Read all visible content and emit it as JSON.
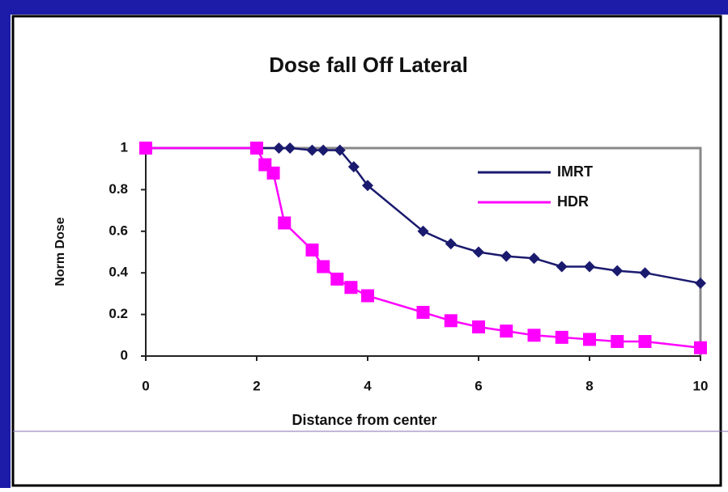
{
  "chart_data": {
    "type": "line",
    "title": "Dose fall Off Lateral",
    "x_label": "Distance from center",
    "y_label": "Norm Dose",
    "xlim": [
      0,
      10
    ],
    "xticks": [
      0,
      2,
      4,
      6,
      8,
      10
    ],
    "ylim": [
      0,
      1
    ],
    "yticks": [
      0,
      0.2,
      0.4,
      0.6,
      0.8,
      1
    ],
    "grid": false,
    "legend_position": "upper right",
    "series": [
      {
        "name": "IMRT",
        "color": "#1a1a6e",
        "marker": "diamond",
        "x": [
          0,
          2.4,
          2.6,
          3,
          3.2,
          3.5,
          3.75,
          4,
          5,
          5.5,
          6,
          6.5,
          7,
          7.5,
          8,
          8.5,
          9,
          10
        ],
        "values": [
          1,
          1,
          1,
          0.99,
          0.99,
          0.99,
          0.91,
          0.82,
          0.6,
          0.54,
          0.5,
          0.48,
          0.47,
          0.43,
          0.43,
          0.41,
          0.4,
          0.35
        ]
      },
      {
        "name": "HDR",
        "color": "#ff00ff",
        "marker": "square",
        "x": [
          0,
          2,
          2.15,
          2.3,
          2.5,
          3,
          3.2,
          3.45,
          3.7,
          4,
          5,
          5.5,
          6,
          6.5,
          7,
          7.5,
          8,
          8.5,
          9,
          10
        ],
        "values": [
          1,
          1,
          0.92,
          0.88,
          0.64,
          0.51,
          0.43,
          0.37,
          0.33,
          0.29,
          0.21,
          0.17,
          0.14,
          0.12,
          0.1,
          0.09,
          0.08,
          0.07,
          0.07,
          0.04
        ]
      }
    ]
  }
}
